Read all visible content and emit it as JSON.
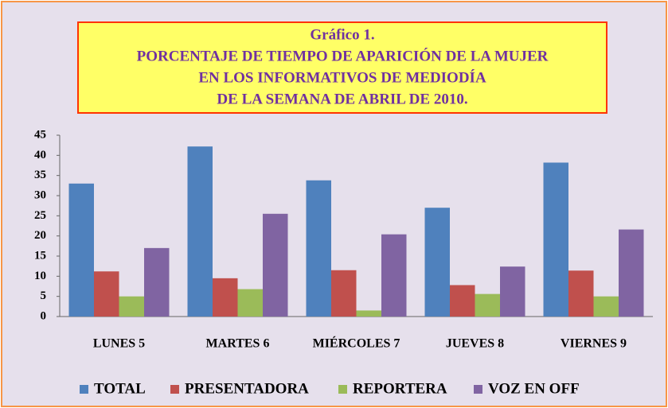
{
  "chart_data": {
    "type": "bar",
    "title": [
      "Gráfico 1.",
      "PORCENTAJE DE TIEMPO DE APARICIÓN DE LA MUJER",
      "EN LOS INFORMATIVOS DE MEDIODÍA",
      "DE LA SEMANA DE ABRIL DE 2010."
    ],
    "categories": [
      "LUNES 5",
      "MARTES 6",
      "MIÉRCOLES 7",
      "JUEVES 8",
      "VIERNES 9"
    ],
    "series": [
      {
        "name": "TOTAL",
        "color": "#4f81bd",
        "values": [
          33,
          42.2,
          33.8,
          27,
          38.2
        ]
      },
      {
        "name": "PRESENTADORA",
        "color": "#c0504d",
        "values": [
          11.2,
          9.5,
          11.5,
          7.8,
          11.4
        ]
      },
      {
        "name": "REPORTERA",
        "color": "#9bbb59",
        "values": [
          5,
          6.8,
          1.5,
          5.6,
          5
        ]
      },
      {
        "name": "VOZ EN OFF",
        "color": "#8064a2",
        "values": [
          17,
          25.5,
          20.4,
          12.4,
          21.6
        ]
      }
    ],
    "ylim": [
      0,
      45
    ],
    "yticks": [
      0,
      5,
      10,
      15,
      20,
      25,
      30,
      35,
      40,
      45
    ],
    "legend": "bottom"
  }
}
